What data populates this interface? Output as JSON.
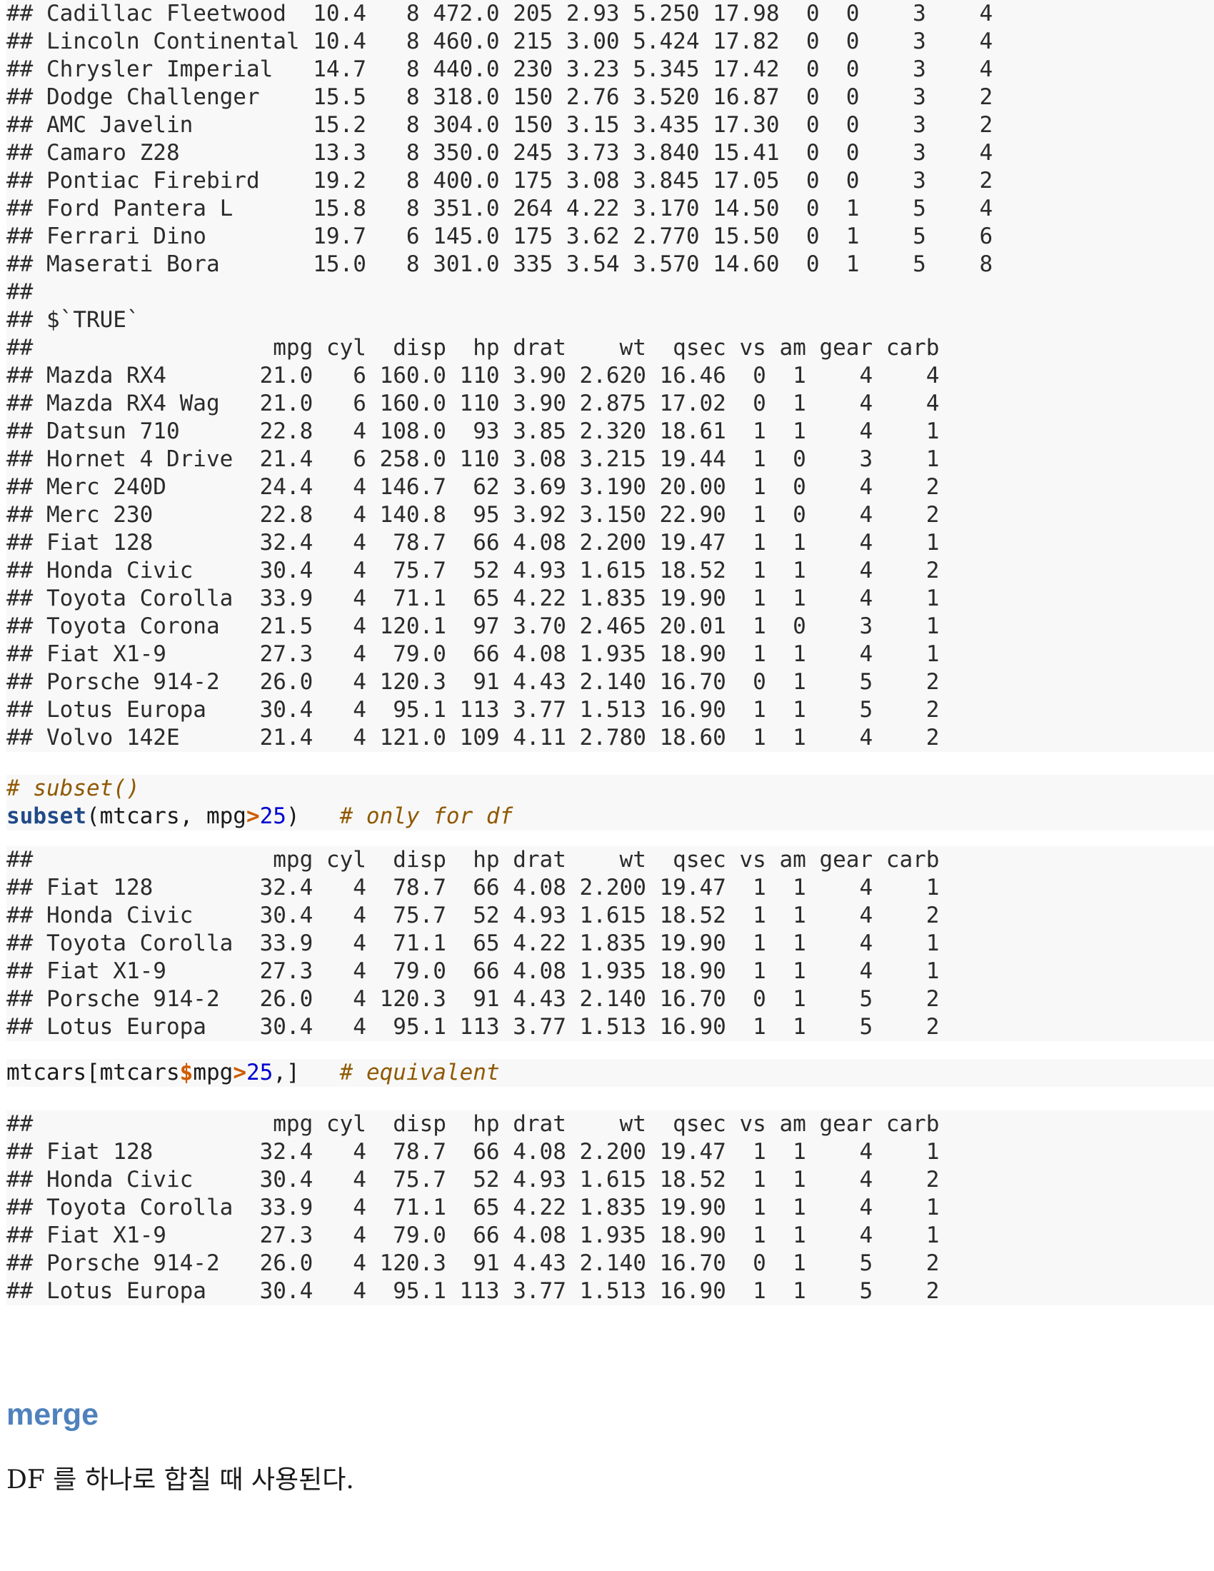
{
  "block1": {
    "lines": [
      "## Cadillac Fleetwood  10.4   8 472.0 205 2.93 5.250 17.98  0  0    3    4",
      "## Lincoln Continental 10.4   8 460.0 215 3.00 5.424 17.82  0  0    3    4",
      "## Chrysler Imperial   14.7   8 440.0 230 3.23 5.345 17.42  0  0    3    4",
      "## Dodge Challenger    15.5   8 318.0 150 2.76 3.520 16.87  0  0    3    2",
      "## AMC Javelin         15.2   8 304.0 150 3.15 3.435 17.30  0  0    3    2",
      "## Camaro Z28          13.3   8 350.0 245 3.73 3.840 15.41  0  0    3    4",
      "## Pontiac Firebird    19.2   8 400.0 175 3.08 3.845 17.05  0  0    3    2",
      "## Ford Pantera L      15.8   8 351.0 264 4.22 3.170 14.50  0  1    5    4",
      "## Ferrari Dino        19.7   6 145.0 175 3.62 2.770 15.50  0  1    5    6",
      "## Maserati Bora       15.0   8 301.0 335 3.54 3.570 14.60  0  1    5    8",
      "##",
      "## $`TRUE`",
      "##                  mpg cyl  disp  hp drat    wt  qsec vs am gear carb",
      "## Mazda RX4       21.0   6 160.0 110 3.90 2.620 16.46  0  1    4    4",
      "## Mazda RX4 Wag   21.0   6 160.0 110 3.90 2.875 17.02  0  1    4    4",
      "## Datsun 710      22.8   4 108.0  93 3.85 2.320 18.61  1  1    4    1",
      "## Hornet 4 Drive  21.4   6 258.0 110 3.08 3.215 19.44  1  0    3    1",
      "## Merc 240D       24.4   4 146.7  62 3.69 3.190 20.00  1  0    4    2",
      "## Merc 230        22.8   4 140.8  95 3.92 3.150 22.90  1  0    4    2",
      "## Fiat 128        32.4   4  78.7  66 4.08 2.200 19.47  1  1    4    1",
      "## Honda Civic     30.4   4  75.7  52 4.93 1.615 18.52  1  1    4    2",
      "## Toyota Corolla  33.9   4  71.1  65 4.22 1.835 19.90  1  1    4    1",
      "## Toyota Corona   21.5   4 120.1  97 3.70 2.465 20.01  1  0    3    1",
      "## Fiat X1-9       27.3   4  79.0  66 4.08 1.935 18.90  1  1    4    1",
      "## Porsche 914-2   26.0   4 120.3  91 4.43 2.140 16.70  0  1    5    2",
      "## Lotus Europa    30.4   4  95.1 113 3.77 1.513 16.90  1  1    5    2",
      "## Volvo 142E      21.4   4 121.0 109 4.11 2.780 18.60  1  1    4    2"
    ]
  },
  "code1": {
    "comment": "# subset()",
    "fn": "subset",
    "args_a": "(mtcars, mpg",
    "op": ">",
    "num": "25",
    "args_b": ")   ",
    "trail_comment": "# only for df"
  },
  "block2": {
    "lines": [
      "##                  mpg cyl  disp  hp drat    wt  qsec vs am gear carb",
      "## Fiat 128        32.4   4  78.7  66 4.08 2.200 19.47  1  1    4    1",
      "## Honda Civic     30.4   4  75.7  52 4.93 1.615 18.52  1  1    4    2",
      "## Toyota Corolla  33.9   4  71.1  65 4.22 1.835 19.90  1  1    4    1",
      "## Fiat X1-9       27.3   4  79.0  66 4.08 1.935 18.90  1  1    4    1",
      "## Porsche 914-2   26.0   4 120.3  91 4.43 2.140 16.70  0  1    5    2",
      "## Lotus Europa    30.4   4  95.1 113 3.77 1.513 16.90  1  1    5    2"
    ]
  },
  "code2": {
    "pre": "mtcars[mtcars",
    "dollar": "$",
    "mid": "mpg",
    "op": ">",
    "num": "25",
    "post": ",]   ",
    "trail_comment": "# equivalent"
  },
  "block3": {
    "lines": [
      "##                  mpg cyl  disp  hp drat    wt  qsec vs am gear carb",
      "## Fiat 128        32.4   4  78.7  66 4.08 2.200 19.47  1  1    4    1",
      "## Honda Civic     30.4   4  75.7  52 4.93 1.615 18.52  1  1    4    2",
      "## Toyota Corolla  33.9   4  71.1  65 4.22 1.835 19.90  1  1    4    1",
      "## Fiat X1-9       27.3   4  79.0  66 4.08 1.935 18.90  1  1    4    1",
      "## Porsche 914-2   26.0   4 120.3  91 4.43 2.140 16.70  0  1    5    2",
      "## Lotus Europa    30.4   4  95.1 113 3.77 1.513 16.90  1  1    5    2"
    ]
  },
  "section": {
    "heading": "merge",
    "paragraph": "DF 를 하나로 합칠 때 사용된다."
  }
}
